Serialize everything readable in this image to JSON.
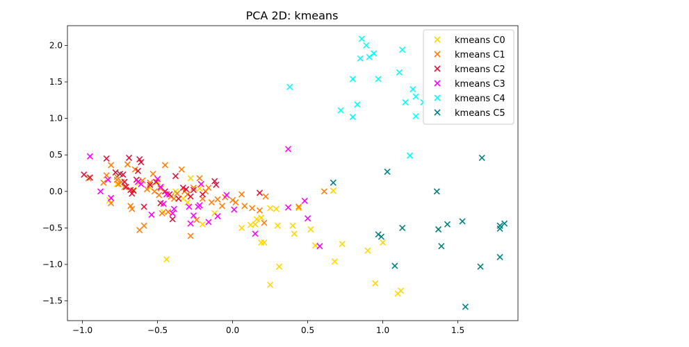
{
  "chart_data": {
    "type": "scatter",
    "title": "PCA 2D: kmeans",
    "xlabel": "",
    "ylabel": "",
    "xlim": [
      -1.1,
      1.9
    ],
    "ylim": [
      -1.77,
      2.27
    ],
    "xticks": [
      -1.0,
      -0.5,
      0.0,
      0.5,
      1.0,
      1.5
    ],
    "xtick_labels": [
      "−1.0",
      "−0.5",
      "0.0",
      "0.5",
      "1.0",
      "1.5"
    ],
    "yticks": [
      -1.5,
      -1.0,
      -0.5,
      0.0,
      0.5,
      1.0,
      1.5,
      2.0
    ],
    "ytick_labels": [
      "−1.5",
      "−1.0",
      "−0.5",
      "0.0",
      "0.5",
      "1.0",
      "1.5",
      "2.0"
    ],
    "grid": false,
    "legend_position": "top-right",
    "marker": "x",
    "series": [
      {
        "name": "kmeans C0",
        "color": "#FFD700",
        "points": [
          [
            0.67,
            0.01
          ],
          [
            -0.44,
            -0.93
          ],
          [
            0.06,
            -0.5
          ],
          [
            0.12,
            -0.46
          ],
          [
            0.15,
            -0.45
          ],
          [
            0.16,
            -0.38
          ],
          [
            0.19,
            -0.36
          ],
          [
            0.19,
            -0.7
          ],
          [
            0.21,
            -0.7
          ],
          [
            0.25,
            -0.23
          ],
          [
            0.25,
            -1.28
          ],
          [
            0.29,
            -0.24
          ],
          [
            0.3,
            -0.47
          ],
          [
            0.31,
            -1.03
          ],
          [
            0.4,
            -0.47
          ],
          [
            0.41,
            -0.58
          ],
          [
            0.44,
            -0.23
          ],
          [
            0.52,
            -0.52
          ],
          [
            0.55,
            -0.74
          ],
          [
            0.68,
            -0.96
          ],
          [
            0.73,
            -0.72
          ],
          [
            0.9,
            -0.81
          ],
          [
            0.95,
            -1.26
          ],
          [
            1.0,
            -0.7
          ],
          [
            1.1,
            -1.4
          ],
          [
            1.12,
            -1.36
          ],
          [
            -0.28,
            0.18
          ],
          [
            -0.22,
            0.04
          ],
          [
            -0.12,
            -0.3
          ],
          [
            -0.2,
            -0.45
          ],
          [
            -0.5,
            0.13
          ],
          [
            -0.55,
            0.05
          ],
          [
            -0.62,
            0.12
          ],
          [
            -0.66,
            0.02
          ],
          [
            -0.77,
            0.1
          ],
          [
            -0.82,
            -0.12
          ],
          [
            -0.3,
            -0.15
          ],
          [
            -0.38,
            0.0
          ],
          [
            -0.33,
            -0.1
          ],
          [
            -0.46,
            -0.28
          ]
        ]
      },
      {
        "name": "kmeans C1",
        "color": "#FF7F0E",
        "points": [
          [
            -0.96,
            0.18
          ],
          [
            -0.86,
            0.12
          ],
          [
            -0.84,
            0.22
          ],
          [
            -0.81,
            0.36
          ],
          [
            -0.81,
            -0.16
          ],
          [
            -0.77,
            0.2
          ],
          [
            -0.77,
            0.16
          ],
          [
            -0.76,
            0.1
          ],
          [
            -0.74,
            0.13
          ],
          [
            -0.72,
            0.06
          ],
          [
            -0.7,
            0.37
          ],
          [
            -0.68,
            -0.2
          ],
          [
            -0.67,
            -0.24
          ],
          [
            -0.65,
            0.3
          ],
          [
            -0.62,
            -0.53
          ],
          [
            -0.6,
            0.15
          ],
          [
            -0.59,
            -0.47
          ],
          [
            -0.57,
            0.03
          ],
          [
            -0.55,
            0.12
          ],
          [
            -0.53,
            0.24
          ],
          [
            -0.52,
            0.0
          ],
          [
            -0.49,
            -0.05
          ],
          [
            -0.48,
            0.04
          ],
          [
            -0.47,
            -0.3
          ],
          [
            -0.45,
            0.36
          ],
          [
            -0.43,
            -0.28
          ],
          [
            -0.41,
            -0.07
          ],
          [
            -0.39,
            -0.1
          ],
          [
            -0.37,
            -0.03
          ],
          [
            -0.34,
            0.3
          ],
          [
            -0.32,
            0.0
          ],
          [
            -0.3,
            -0.04
          ],
          [
            -0.28,
            -0.61
          ],
          [
            -0.26,
            0.05
          ],
          [
            -0.24,
            -0.39
          ],
          [
            -0.22,
            0.18
          ],
          [
            -0.2,
            -0.1
          ],
          [
            -0.18,
            0.0
          ],
          [
            -0.16,
            0.05
          ],
          [
            -0.14,
            -0.15
          ],
          [
            -0.1,
            -0.11
          ],
          [
            -0.07,
            -0.2
          ],
          [
            -0.05,
            -0.08
          ],
          [
            0.0,
            -0.12
          ],
          [
            0.02,
            -0.15
          ],
          [
            0.06,
            -0.04
          ],
          [
            0.08,
            -0.2
          ],
          [
            0.13,
            -0.23
          ],
          [
            0.18,
            -0.26
          ],
          [
            0.21,
            -0.43
          ],
          [
            0.22,
            -0.07
          ],
          [
            0.44,
            -0.21
          ],
          [
            0.61,
            0.0
          ]
        ]
      },
      {
        "name": "kmeans C2",
        "color": "#DC143C",
        "points": [
          [
            -0.99,
            0.23
          ],
          [
            -0.95,
            0.19
          ],
          [
            -0.84,
            0.45
          ],
          [
            -0.78,
            0.26
          ],
          [
            -0.75,
            0.24
          ],
          [
            -0.73,
            0.23
          ],
          [
            -0.72,
            0.13
          ],
          [
            -0.71,
            0.06
          ],
          [
            -0.69,
            0.46
          ],
          [
            -0.68,
            0.02
          ],
          [
            -0.67,
            -0.03
          ],
          [
            -0.66,
            0.01
          ],
          [
            -0.64,
            0.16
          ],
          [
            -0.63,
            0.28
          ],
          [
            -0.62,
            0.44
          ],
          [
            -0.61,
            0.4
          ],
          [
            -0.59,
            -0.21
          ],
          [
            -0.55,
            0.09
          ],
          [
            -0.51,
            0.13
          ],
          [
            -0.48,
            -0.16
          ],
          [
            -0.45,
            0.0
          ],
          [
            -0.42,
            -0.04
          ],
          [
            -0.4,
            -0.38
          ],
          [
            -0.38,
            0.21
          ],
          [
            -0.36,
            -0.1
          ],
          [
            -0.33,
            0.05
          ],
          [
            -0.31,
            0.03
          ],
          [
            -0.28,
            -0.07
          ],
          [
            -0.26,
            0.02
          ],
          [
            -0.2,
            -0.04
          ],
          [
            -0.12,
            0.14
          ],
          [
            -0.11,
            0.09
          ],
          [
            0.18,
            -0.02
          ]
        ]
      },
      {
        "name": "kmeans C3",
        "color": "#FF00FF",
        "points": [
          [
            -0.95,
            0.48
          ],
          [
            -0.88,
            0.0
          ],
          [
            -0.83,
            0.16
          ],
          [
            -0.81,
            -0.09
          ],
          [
            -0.63,
            0.13
          ],
          [
            -0.61,
            0.1
          ],
          [
            -0.54,
            -0.32
          ],
          [
            -0.5,
            0.17
          ],
          [
            -0.48,
            0.06
          ],
          [
            -0.46,
            -0.17
          ],
          [
            -0.44,
            -0.04
          ],
          [
            -0.4,
            -0.3
          ],
          [
            -0.39,
            -0.24
          ],
          [
            -0.29,
            -0.21
          ],
          [
            -0.28,
            -0.44
          ],
          [
            -0.26,
            -0.33
          ],
          [
            -0.23,
            -0.21
          ],
          [
            -0.22,
            -0.19
          ],
          [
            -0.21,
            0.1
          ],
          [
            -0.16,
            -0.42
          ],
          [
            -0.1,
            -0.34
          ],
          [
            -0.04,
            -0.05
          ],
          [
            0.01,
            -0.25
          ],
          [
            0.15,
            -0.58
          ],
          [
            0.37,
            0.58
          ],
          [
            0.37,
            -0.22
          ],
          [
            0.48,
            -0.13
          ],
          [
            0.5,
            -0.37
          ],
          [
            0.58,
            -0.75
          ]
        ]
      },
      {
        "name": "kmeans C4",
        "color": "#00FFFF",
        "points": [
          [
            0.86,
            2.09
          ],
          [
            0.89,
            2.0
          ],
          [
            0.91,
            1.84
          ],
          [
            0.94,
            1.89
          ],
          [
            0.85,
            1.82
          ],
          [
            1.13,
            1.94
          ],
          [
            0.8,
            1.54
          ],
          [
            0.97,
            1.54
          ],
          [
            1.11,
            1.63
          ],
          [
            0.38,
            1.43
          ],
          [
            1.2,
            1.4
          ],
          [
            1.15,
            1.22
          ],
          [
            1.22,
            1.3
          ],
          [
            1.27,
            1.22
          ],
          [
            0.72,
            1.11
          ],
          [
            0.8,
            1.02
          ],
          [
            0.83,
            1.19
          ],
          [
            1.22,
            1.03
          ],
          [
            1.18,
            0.49
          ]
        ]
      },
      {
        "name": "kmeans C5",
        "color": "#008080",
        "points": [
          [
            0.67,
            0.12
          ],
          [
            1.03,
            0.27
          ],
          [
            1.36,
            0.0
          ],
          [
            1.66,
            0.46
          ],
          [
            1.13,
            -0.5
          ],
          [
            1.37,
            -0.52
          ],
          [
            1.43,
            -0.45
          ],
          [
            1.53,
            -0.41
          ],
          [
            1.78,
            -0.47
          ],
          [
            1.78,
            -0.51
          ],
          [
            1.81,
            -0.44
          ],
          [
            0.97,
            -0.59
          ],
          [
            0.99,
            -0.62
          ],
          [
            1.39,
            -0.75
          ],
          [
            1.08,
            -1.02
          ],
          [
            1.65,
            -1.03
          ],
          [
            1.78,
            -0.9
          ],
          [
            1.55,
            -1.58
          ]
        ]
      }
    ]
  }
}
